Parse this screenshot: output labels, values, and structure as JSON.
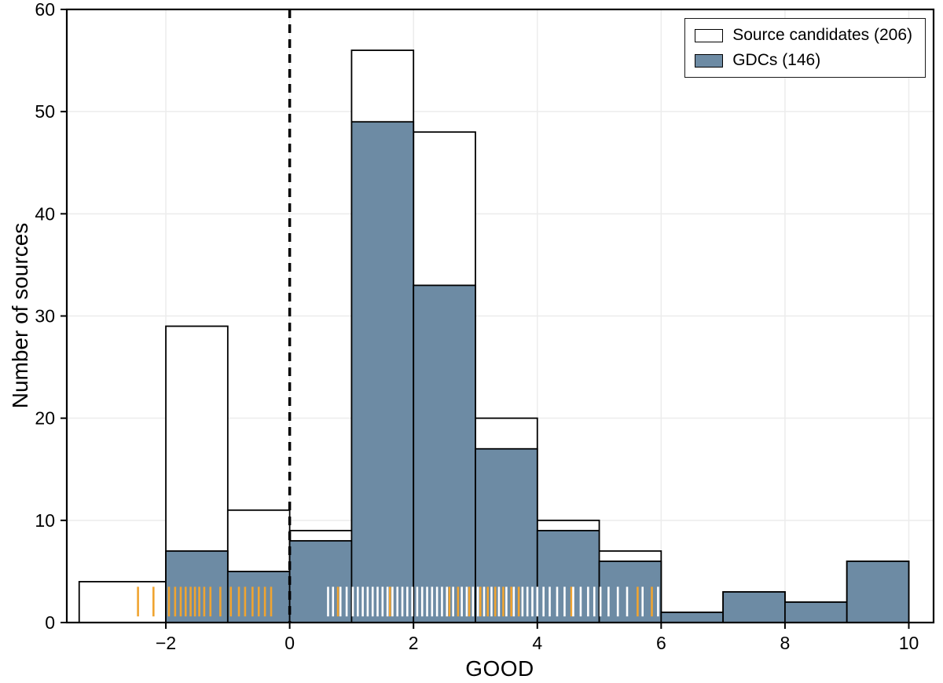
{
  "chart_data": {
    "type": "bar",
    "variant": "overlaid-histogram",
    "title": "",
    "xlabel": "GOOD",
    "ylabel": "Number of sources",
    "xlim": [
      -3.6,
      10.4
    ],
    "ylim": [
      0,
      60
    ],
    "x_tick_values": [
      -2,
      0,
      2,
      4,
      6,
      8,
      10
    ],
    "x_tick_labels": [
      "−2",
      "0",
      "2",
      "4",
      "6",
      "8",
      "10"
    ],
    "y_tick_values": [
      0,
      10,
      20,
      30,
      40,
      50,
      60
    ],
    "y_tick_labels": [
      "0",
      "10",
      "20",
      "30",
      "40",
      "50",
      "60"
    ],
    "bin_edges": [
      -3.4,
      -2,
      -1,
      0,
      1,
      2,
      3,
      4,
      5,
      6,
      7,
      8,
      9,
      10
    ],
    "series": [
      {
        "name": "Source candidates (206)",
        "values": [
          4,
          29,
          11,
          9,
          56,
          48,
          20,
          10,
          7,
          1,
          3,
          2,
          6
        ],
        "fill": "#ffffff",
        "edge": "#000000"
      },
      {
        "name": "GDCs (146)",
        "values": [
          0,
          7,
          5,
          8,
          49,
          33,
          17,
          9,
          6,
          1,
          3,
          2,
          6
        ],
        "fill": "#6d8ba4",
        "edge": "#000000"
      }
    ],
    "vline": {
      "x": 0,
      "color": "#000000",
      "dash": "11 8",
      "width": 3.5
    },
    "grid": {
      "show": true,
      "color": "#ececec",
      "width": 1.5
    },
    "rug": {
      "y_min": 0.6,
      "y_max": 3.5,
      "groups": [
        {
          "name": "orange-marks",
          "color": "#f0a430",
          "x": [
            -2.45,
            -2.2,
            -1.95,
            -1.85,
            -1.76,
            -1.68,
            -1.6,
            -1.53,
            -1.46,
            -1.38,
            -1.28,
            -1.12,
            -0.95,
            -0.82,
            -0.72,
            -0.6,
            -0.5,
            -0.4,
            -0.3,
            0.78,
            1.62,
            2.58,
            2.72,
            2.9,
            3.08,
            3.2,
            3.32,
            3.45,
            3.58,
            3.7,
            4.55,
            5.62,
            5.85
          ]
        },
        {
          "name": "white-marks",
          "color": "#ffffff",
          "x": [
            0.62,
            0.7,
            0.82,
            0.92,
            1.02,
            1.1,
            1.18,
            1.26,
            1.34,
            1.42,
            1.5,
            1.58,
            1.66,
            1.74,
            1.82,
            1.9,
            1.98,
            2.06,
            2.14,
            2.22,
            2.3,
            2.38,
            2.46,
            2.54,
            2.64,
            2.78,
            2.86,
            2.96,
            3.04,
            3.14,
            3.26,
            3.38,
            3.5,
            3.62,
            3.76,
            3.84,
            3.92,
            4.0,
            4.1,
            4.2,
            4.32,
            4.44,
            4.58,
            4.7,
            4.82,
            4.92,
            5.02,
            5.15,
            5.3,
            5.45,
            5.7,
            5.95
          ]
        }
      ]
    },
    "legend": {
      "position": "upper right",
      "entries": [
        {
          "label": "Source candidates (206)",
          "fill": "#ffffff"
        },
        {
          "label": "GDCs (146)",
          "fill": "#6d8ba4"
        }
      ]
    }
  }
}
